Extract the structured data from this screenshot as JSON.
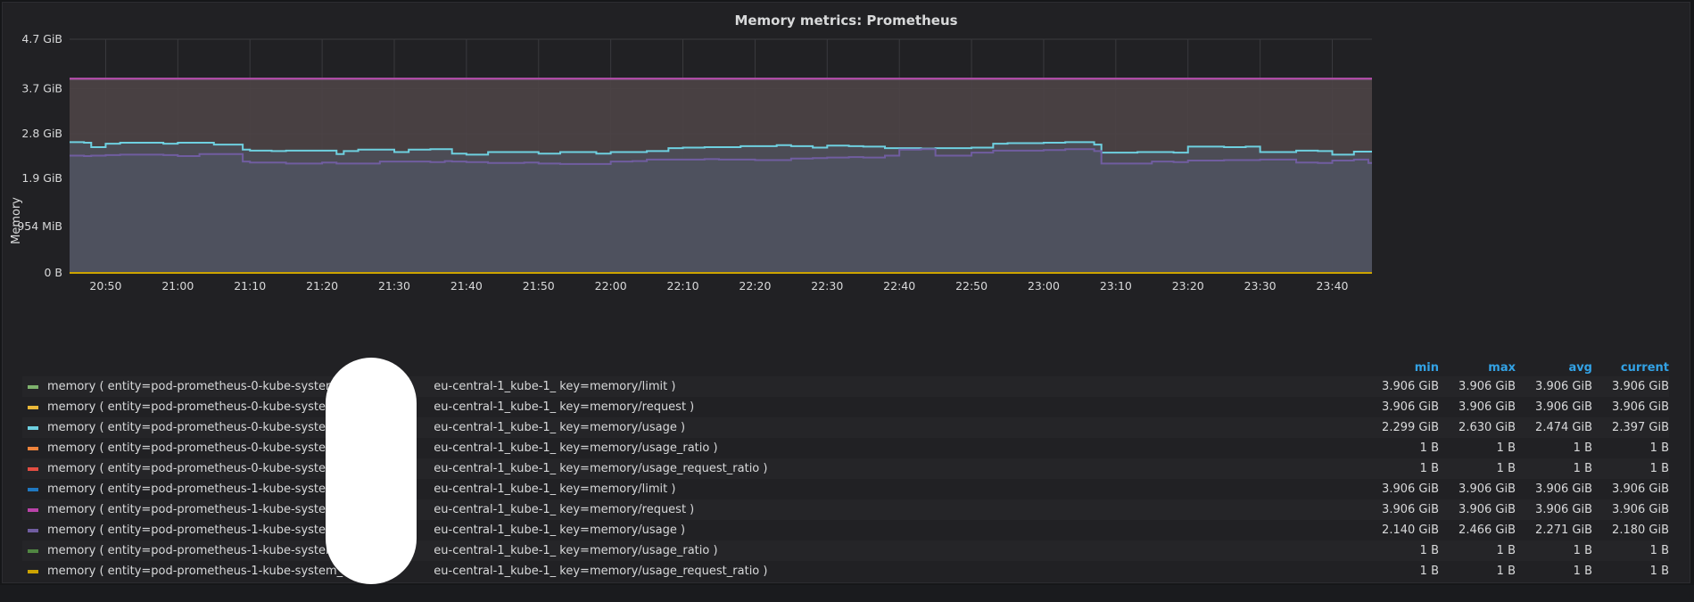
{
  "panel": {
    "title": "Memory metrics: Prometheus",
    "ylabel": "Memory"
  },
  "colors": {
    "background": "#212124",
    "grid": "#3a3a3e",
    "band_fill": "#4a4a50",
    "legend_header": "#33a2e5"
  },
  "chart_data": {
    "type": "line",
    "title": "Memory metrics: Prometheus",
    "xlabel": "",
    "ylabel": "Memory",
    "ylim": [
      0,
      4.7
    ],
    "y_unit": "GiB",
    "y_ticks": [
      {
        "value": 0,
        "label": "0 B"
      },
      {
        "value": 0.93164,
        "label": "954 MiB"
      },
      {
        "value": 1.9,
        "label": "1.9 GiB"
      },
      {
        "value": 2.8,
        "label": "2.8 GiB"
      },
      {
        "value": 3.7,
        "label": "3.7 GiB"
      },
      {
        "value": 4.7,
        "label": "4.7 GiB"
      }
    ],
    "x_ticks": [
      "20:50",
      "21:00",
      "21:10",
      "21:20",
      "21:30",
      "21:40",
      "21:50",
      "22:00",
      "22:10",
      "22:20",
      "22:30",
      "22:40",
      "22:50",
      "23:00",
      "23:10",
      "23:20",
      "23:30",
      "23:40"
    ],
    "grid": true,
    "legend_position": "bottom",
    "x": [
      "20:45",
      "20:46",
      "20:47",
      "20:48",
      "20:50",
      "20:52",
      "20:55",
      "20:58",
      "21:00",
      "21:03",
      "21:05",
      "21:07",
      "21:09",
      "21:10",
      "21:13",
      "21:15",
      "21:18",
      "21:20",
      "21:22",
      "21:23",
      "21:25",
      "21:28",
      "21:30",
      "21:32",
      "21:35",
      "21:37",
      "21:38",
      "21:40",
      "21:43",
      "21:45",
      "21:48",
      "21:50",
      "21:53",
      "21:55",
      "21:58",
      "22:00",
      "22:03",
      "22:05",
      "22:08",
      "22:10",
      "22:13",
      "22:15",
      "22:18",
      "22:20",
      "22:23",
      "22:25",
      "22:28",
      "22:30",
      "22:33",
      "22:35",
      "22:38",
      "22:40",
      "22:43",
      "22:45",
      "22:47",
      "22:50",
      "22:53",
      "22:55",
      "22:58",
      "23:00",
      "23:03",
      "23:05",
      "23:07",
      "23:08",
      "23:10",
      "23:13",
      "23:15",
      "23:18",
      "23:20",
      "23:23",
      "23:25",
      "23:28",
      "23:30",
      "23:33",
      "23:35",
      "23:38",
      "23:40",
      "23:43",
      "23:45"
    ],
    "series": [
      {
        "name": "memory ( entity=pod-prometheus-0-kube-system_aws_",
        "name_suffix": "eu-central-1_kube-1_ key=memory/limit )",
        "color": "#7eb26d",
        "constant": 3.906,
        "stats": {
          "min": "3.906 GiB",
          "max": "3.906 GiB",
          "avg": "3.906 GiB",
          "current": "3.906 GiB"
        }
      },
      {
        "name": "memory ( entity=pod-prometheus-0-kube-system_aws_",
        "name_suffix": "eu-central-1_kube-1_ key=memory/request )",
        "color": "#eab839",
        "constant": 3.906,
        "stats": {
          "min": "3.906 GiB",
          "max": "3.906 GiB",
          "avg": "3.906 GiB",
          "current": "3.906 GiB"
        }
      },
      {
        "name": "memory ( entity=pod-prometheus-0-kube-system_aws_",
        "name_suffix": "eu-central-1_kube-1_ key=memory/usage )",
        "color": "#6ed0e0",
        "values": [
          2.63,
          2.63,
          2.62,
          2.53,
          2.6,
          2.62,
          2.62,
          2.6,
          2.62,
          2.62,
          2.58,
          2.58,
          2.48,
          2.46,
          2.45,
          2.46,
          2.46,
          2.46,
          2.39,
          2.45,
          2.48,
          2.48,
          2.43,
          2.48,
          2.49,
          2.49,
          2.4,
          2.38,
          2.43,
          2.43,
          2.43,
          2.4,
          2.43,
          2.43,
          2.4,
          2.43,
          2.43,
          2.45,
          2.51,
          2.52,
          2.53,
          2.53,
          2.55,
          2.55,
          2.57,
          2.55,
          2.52,
          2.56,
          2.55,
          2.54,
          2.51,
          2.51,
          2.5,
          2.51,
          2.51,
          2.52,
          2.6,
          2.61,
          2.61,
          2.62,
          2.63,
          2.63,
          2.58,
          2.42,
          2.42,
          2.43,
          2.43,
          2.42,
          2.54,
          2.54,
          2.53,
          2.54,
          2.43,
          2.43,
          2.46,
          2.45,
          2.38,
          2.44,
          2.44
        ]
      },
      {
        "name": "memory ( entity=pod-prometheus-0-kube-system_aws_",
        "name_suffix": "eu-central-1_kube-1_ key=memory/usage_ratio )",
        "color": "#ef843c",
        "stats": {
          "min": "1 B",
          "max": "1 B",
          "avg": "1 B",
          "current": "1 B"
        }
      },
      {
        "name": "memory ( entity=pod-prometheus-0-kube-system_aws_",
        "name_suffix": "eu-central-1_kube-1_ key=memory/usage_request_ratio )",
        "color": "#e24d42",
        "stats": {
          "min": "1 B",
          "max": "1 B",
          "avg": "1 B",
          "current": "1 B"
        }
      },
      {
        "name": "memory ( entity=pod-prometheus-1-kube-system_aws_",
        "name_suffix": "eu-central-1_kube-1_ key=memory/limit )",
        "color": "#1f78c1",
        "constant": 3.906,
        "stats": {
          "min": "3.906 GiB",
          "max": "3.906 GiB",
          "avg": "3.906 GiB",
          "current": "3.906 GiB"
        }
      },
      {
        "name": "memory ( entity=pod-prometheus-1-kube-system_aws_",
        "name_suffix": "eu-central-1_kube-1_ key=memory/request )",
        "color": "#ba43a9",
        "constant": 3.906,
        "stats": {
          "min": "3.906 GiB",
          "max": "3.906 GiB",
          "avg": "3.906 GiB",
          "current": "3.906 GiB"
        }
      },
      {
        "name": "memory ( entity=pod-prometheus-1-kube-system_aws_",
        "name_suffix": "eu-central-1_kube-1_ key=memory/usage )",
        "color": "#705da0",
        "values": [
          2.36,
          2.36,
          2.35,
          2.36,
          2.37,
          2.38,
          2.38,
          2.37,
          2.35,
          2.39,
          2.39,
          2.39,
          2.24,
          2.22,
          2.22,
          2.2,
          2.2,
          2.22,
          2.2,
          2.2,
          2.2,
          2.24,
          2.24,
          2.24,
          2.23,
          2.25,
          2.24,
          2.23,
          2.21,
          2.21,
          2.22,
          2.2,
          2.19,
          2.19,
          2.19,
          2.24,
          2.25,
          2.28,
          2.28,
          2.28,
          2.29,
          2.28,
          2.28,
          2.27,
          2.27,
          2.3,
          2.31,
          2.32,
          2.33,
          2.32,
          2.36,
          2.48,
          2.49,
          2.36,
          2.36,
          2.42,
          2.46,
          2.46,
          2.46,
          2.47,
          2.49,
          2.49,
          2.45,
          2.2,
          2.2,
          2.2,
          2.24,
          2.23,
          2.26,
          2.26,
          2.27,
          2.27,
          2.28,
          2.28,
          2.22,
          2.21,
          2.26,
          2.28,
          2.21
        ],
        "stats": {
          "min": "2.140 GiB",
          "max": "2.466 GiB",
          "avg": "2.271 GiB",
          "current": "2.180 GiB"
        }
      },
      {
        "name": "memory ( entity=pod-prometheus-1-kube-system_aws_",
        "name_suffix": "eu-central-1_kube-1_ key=memory/usage_ratio )",
        "color": "#508642",
        "stats": {
          "min": "1 B",
          "max": "1 B",
          "avg": "1 B",
          "current": "1 B"
        }
      },
      {
        "name": "memory ( entity=pod-prometheus-1-kube-system_aws_",
        "name_suffix": "eu-central-1_kube-1_ key=memory/usage_request_ratio )",
        "color": "#cca300",
        "constant": 0,
        "stats": {
          "min": "1 B",
          "max": "1 B",
          "avg": "1 B",
          "current": "1 B"
        }
      }
    ]
  },
  "legend": {
    "columns": [
      "min",
      "max",
      "avg",
      "current"
    ],
    "rows": [
      {
        "label": "memory ( entity=pod-prometheus-0-kube-system_aws_",
        "suffix": "eu-central-1_kube-1_ key=memory/limit )",
        "color": "#7eb26d",
        "min": "3.906 GiB",
        "max": "3.906 GiB",
        "avg": "3.906 GiB",
        "current": "3.906 GiB"
      },
      {
        "label": "memory ( entity=pod-prometheus-0-kube-system_aws_",
        "suffix": "eu-central-1_kube-1_ key=memory/request )",
        "color": "#eab839",
        "min": "3.906 GiB",
        "max": "3.906 GiB",
        "avg": "3.906 GiB",
        "current": "3.906 GiB"
      },
      {
        "label": "memory ( entity=pod-prometheus-0-kube-system_aws_",
        "suffix": "eu-central-1_kube-1_ key=memory/usage )",
        "color": "#6ed0e0",
        "min": "2.299 GiB",
        "max": "2.630 GiB",
        "avg": "2.474 GiB",
        "current": "2.397 GiB"
      },
      {
        "label": "memory ( entity=pod-prometheus-0-kube-system_aws_",
        "suffix": "eu-central-1_kube-1_ key=memory/usage_ratio )",
        "color": "#ef843c",
        "min": "1 B",
        "max": "1 B",
        "avg": "1 B",
        "current": "1 B"
      },
      {
        "label": "memory ( entity=pod-prometheus-0-kube-system_aws_",
        "suffix": "eu-central-1_kube-1_ key=memory/usage_request_ratio )",
        "color": "#e24d42",
        "min": "1 B",
        "max": "1 B",
        "avg": "1 B",
        "current": "1 B"
      },
      {
        "label": "memory ( entity=pod-prometheus-1-kube-system_aws_",
        "suffix": "eu-central-1_kube-1_ key=memory/limit )",
        "color": "#1f78c1",
        "min": "3.906 GiB",
        "max": "3.906 GiB",
        "avg": "3.906 GiB",
        "current": "3.906 GiB"
      },
      {
        "label": "memory ( entity=pod-prometheus-1-kube-system_aws_",
        "suffix": "eu-central-1_kube-1_ key=memory/request )",
        "color": "#ba43a9",
        "min": "3.906 GiB",
        "max": "3.906 GiB",
        "avg": "3.906 GiB",
        "current": "3.906 GiB"
      },
      {
        "label": "memory ( entity=pod-prometheus-1-kube-system_aws_",
        "suffix": "eu-central-1_kube-1_ key=memory/usage )",
        "color": "#705da0",
        "min": "2.140 GiB",
        "max": "2.466 GiB",
        "avg": "2.271 GiB",
        "current": "2.180 GiB"
      },
      {
        "label": "memory ( entity=pod-prometheus-1-kube-system_aws_",
        "suffix": "eu-central-1_kube-1_ key=memory/usage_ratio )",
        "color": "#508642",
        "min": "1 B",
        "max": "1 B",
        "avg": "1 B",
        "current": "1 B"
      },
      {
        "label": "memory ( entity=pod-prometheus-1-kube-system_aws_",
        "suffix": "eu-central-1_kube-1_ key=memory/usage_request_ratio )",
        "color": "#cca300",
        "min": "1 B",
        "max": "1 B",
        "avg": "1 B",
        "current": "1 B"
      }
    ]
  }
}
